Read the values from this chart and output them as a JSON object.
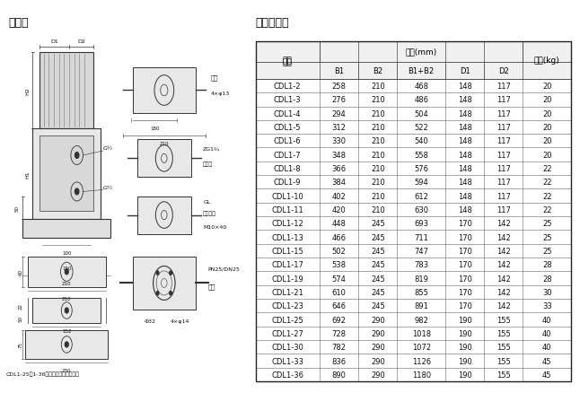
{
  "title_left": "安装图",
  "title_right": "尺寸和重量",
  "bg_color": "#ffffff",
  "table_data": [
    [
      "CDL1-2",
      "258",
      "210",
      "468",
      "148",
      "117",
      "20"
    ],
    [
      "CDL1-3",
      "276",
      "210",
      "486",
      "148",
      "117",
      "20"
    ],
    [
      "CDL1-4",
      "294",
      "210",
      "504",
      "148",
      "117",
      "20"
    ],
    [
      "CDL1-5",
      "312",
      "210",
      "522",
      "148",
      "117",
      "20"
    ],
    [
      "CDL1-6",
      "330",
      "210",
      "540",
      "148",
      "117",
      "20"
    ],
    [
      "CDL1-7",
      "348",
      "210",
      "558",
      "148",
      "117",
      "20"
    ],
    [
      "CDL1-8",
      "366",
      "210",
      "576",
      "148",
      "117",
      "22"
    ],
    [
      "CDL1-9",
      "384",
      "210",
      "594",
      "148",
      "117",
      "22"
    ],
    [
      "CDL1-10",
      "402",
      "210",
      "612",
      "148",
      "117",
      "22"
    ],
    [
      "CDL1-11",
      "420",
      "210",
      "630",
      "148",
      "117",
      "22"
    ],
    [
      "CDL1-12",
      "448",
      "245",
      "693",
      "170",
      "142",
      "25"
    ],
    [
      "CDL1-13",
      "466",
      "245",
      "711",
      "170",
      "142",
      "25"
    ],
    [
      "CDL1-15",
      "502",
      "245",
      "747",
      "170",
      "142",
      "25"
    ],
    [
      "CDL1-17",
      "538",
      "245",
      "783",
      "170",
      "142",
      "28"
    ],
    [
      "CDL1-19",
      "574",
      "245",
      "819",
      "170",
      "142",
      "28"
    ],
    [
      "CDL1-21",
      "610",
      "245",
      "855",
      "170",
      "142",
      "30"
    ],
    [
      "CDL1-23",
      "646",
      "245",
      "891",
      "170",
      "142",
      "33"
    ],
    [
      "CDL1-25",
      "692",
      "290",
      "982",
      "190",
      "155",
      "40"
    ],
    [
      "CDL1-27",
      "728",
      "290",
      "1018",
      "190",
      "155",
      "40"
    ],
    [
      "CDL1-30",
      "782",
      "290",
      "1072",
      "190",
      "155",
      "40"
    ],
    [
      "CDL1-33",
      "836",
      "290",
      "1126",
      "190",
      "155",
      "45"
    ],
    [
      "CDL1-36",
      "890",
      "290",
      "1180",
      "190",
      "155",
      "45"
    ]
  ],
  "col_widths_norm": [
    1.4,
    0.85,
    0.85,
    1.05,
    0.85,
    0.85,
    1.05
  ],
  "caption": "CDL1-25～1-36无屑圆法兰型管路联接",
  "line_color": "#333333",
  "header_fill": "#f0f0f0"
}
